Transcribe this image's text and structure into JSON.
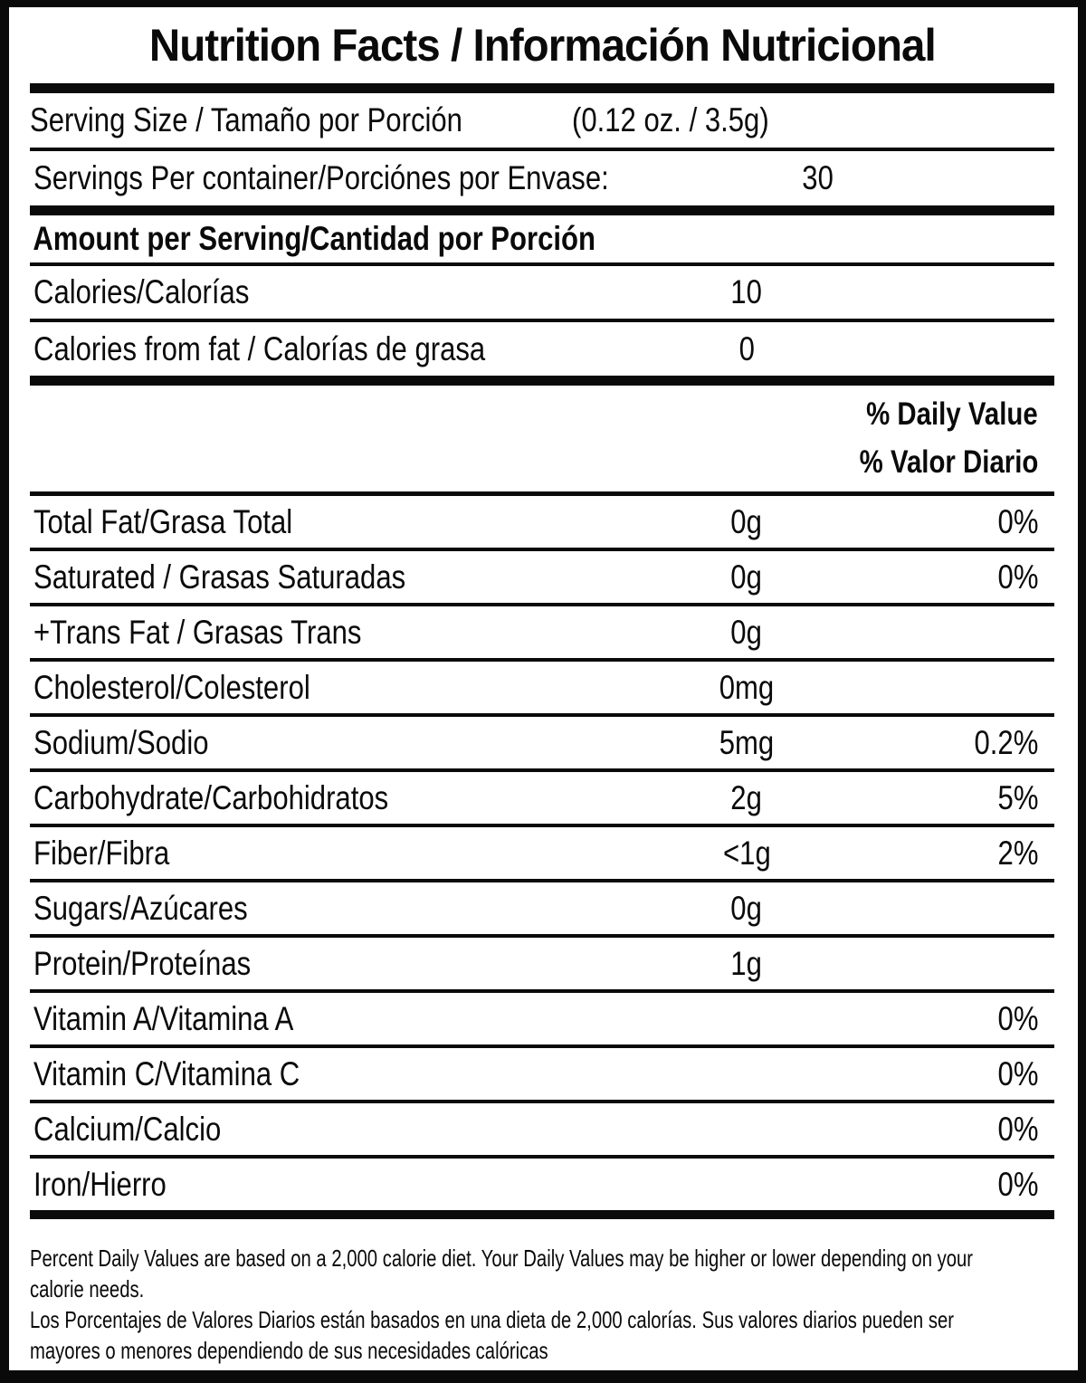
{
  "label": {
    "title": "Nutrition Facts / Información Nutricional",
    "serving_size": {
      "label": "Serving Size / Tamaño por Porción",
      "value": "(0.12 oz. / 3.5g)"
    },
    "servings_per_container": {
      "label": "Servings Per container/Porciónes por Envase:",
      "value": "30"
    },
    "amount_per_serving_heading": "Amount per Serving/Cantidad por Porción",
    "calories": {
      "label": "Calories/Calorías",
      "value": "10"
    },
    "calories_from_fat": {
      "label": "Calories from fat / Calorías de grasa",
      "value": "0"
    },
    "daily_value_header": {
      "en": "% Daily Value",
      "es": "% Valor Diario"
    },
    "nutrients": [
      {
        "label": "Total Fat/Grasa Total",
        "amount": "0g",
        "dv": "0%"
      },
      {
        "label": "Saturated / Grasas Saturadas",
        "amount": "0g",
        "dv": "0%"
      },
      {
        "label": "+Trans Fat / Grasas Trans",
        "amount": "0g",
        "dv": ""
      },
      {
        "label": "Cholesterol/Colesterol",
        "amount": "0mg",
        "dv": ""
      },
      {
        "label": "Sodium/Sodio",
        "amount": "5mg",
        "dv": "0.2%"
      },
      {
        "label": "Carbohydrate/Carbohidratos",
        "amount": "2g",
        "dv": "5%"
      },
      {
        "label": "Fiber/Fibra",
        "amount": "<1g",
        "dv": "2%"
      },
      {
        "label": "Sugars/Azúcares",
        "amount": "0g",
        "dv": ""
      },
      {
        "label": "Protein/Proteínas",
        "amount": "1g",
        "dv": ""
      },
      {
        "label": "Vitamin A/Vitamina A",
        "amount": "",
        "dv": "0%"
      },
      {
        "label": "Vitamin C/Vitamina C",
        "amount": "",
        "dv": "0%"
      },
      {
        "label": "Calcium/Calcio",
        "amount": "",
        "dv": "0%"
      },
      {
        "label": "Iron/Hierro",
        "amount": "",
        "dv": "0%"
      }
    ],
    "footnotes": [
      {
        "lines": [
          "Percent Daily Values are based on a 2,000 calorie diet. Your Daily Values may be higher or lower depending on your",
          "calorie needs."
        ]
      },
      {
        "lines": [
          "Los Porcentajes de Valores Diarios están basados en una dieta de 2,000 calorías. Sus valores diarios pueden ser",
          "mayores o menores dependiendo de sus necesidades calóricas"
        ]
      }
    ],
    "colors": {
      "ink": "#0a0a0a",
      "paper": "#ffffff"
    }
  }
}
